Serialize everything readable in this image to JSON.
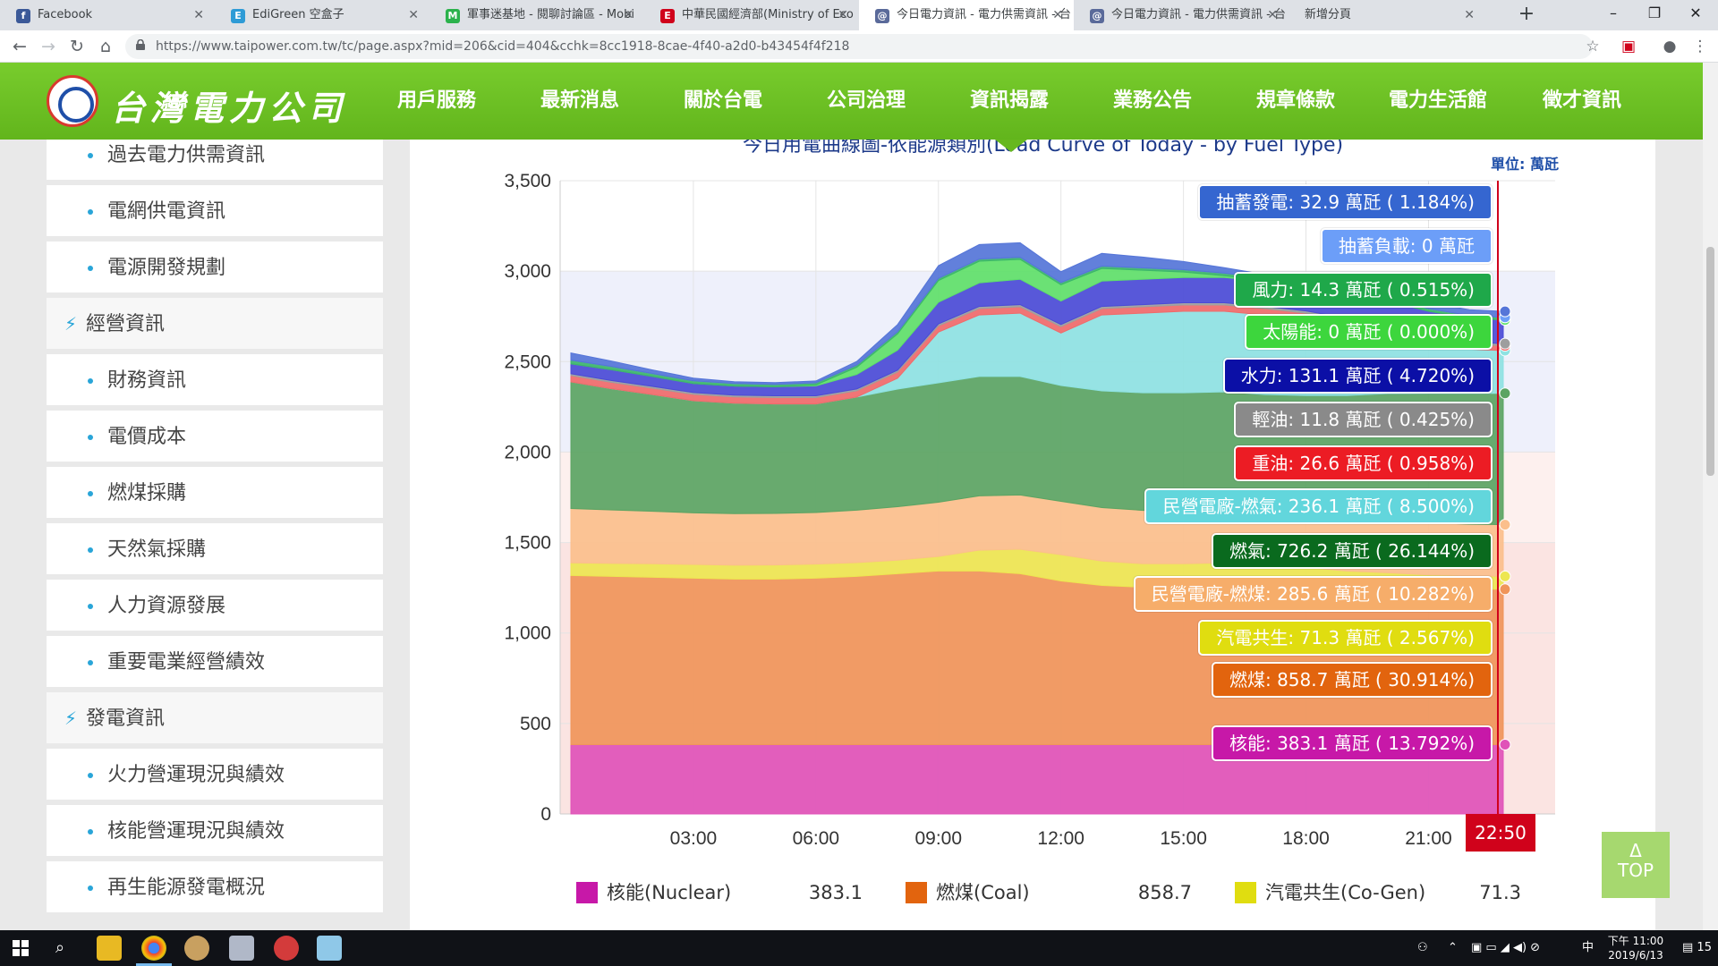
{
  "browser": {
    "tabs": [
      {
        "title": "Facebook",
        "favicon": "f",
        "favcolor": "#3b5998"
      },
      {
        "title": "EdiGreen 空盒子",
        "favicon": "E",
        "favcolor": "#2e9bd6"
      },
      {
        "title": "軍事迷基地 - 閱聊討論區 - Mobi",
        "favicon": "M",
        "favcolor": "#2bb24c"
      },
      {
        "title": "中華民國經濟部(Ministry of Eco",
        "favicon": "E",
        "favcolor": "#d0021b"
      },
      {
        "title": "今日電力資訊 - 電力供需資訊 - 台",
        "favicon": "@",
        "favcolor": "#5a6a9a"
      },
      {
        "title": "今日電力資訊 - 電力供需資訊 - 台",
        "favicon": "@",
        "favcolor": "#5a6a9a"
      },
      {
        "title": "新增分頁",
        "favicon": "",
        "favcolor": "#ffffff"
      }
    ],
    "url": "https://www.taipower.com.tw/tc/page.aspx?mid=206&cid=404&cchk=8cc1918-8cae-4f40-a2d0-b43454f4f218"
  },
  "site": {
    "logo_text": "台灣電力公司",
    "nav": [
      "用戶服務",
      "最新消息",
      "關於台電",
      "公司治理",
      "資訊揭露",
      "業務公告",
      "規章條款",
      "電力生活館",
      "徵才資訊"
    ]
  },
  "sidebar": {
    "items": [
      {
        "label": "過去電力供需資訊",
        "type": "sub"
      },
      {
        "label": "電網供電資訊",
        "type": "sub"
      },
      {
        "label": "電源開發規劃",
        "type": "sub"
      },
      {
        "label": "經營資訊",
        "type": "cat"
      },
      {
        "label": "財務資訊",
        "type": "sub"
      },
      {
        "label": "電價成本",
        "type": "sub"
      },
      {
        "label": "燃煤採購",
        "type": "sub"
      },
      {
        "label": "天然氣採購",
        "type": "sub"
      },
      {
        "label": "人力資源發展",
        "type": "sub"
      },
      {
        "label": "重要電業經營績效",
        "type": "sub"
      },
      {
        "label": "發電資訊",
        "type": "cat"
      },
      {
        "label": "火力營運現況與績效",
        "type": "sub"
      },
      {
        "label": "核能營運現況與績效",
        "type": "sub"
      },
      {
        "label": "再生能源發電概況",
        "type": "sub"
      }
    ]
  },
  "chart_header": {
    "title_partial": "今日用電曲線圖-依能源類別(Load Curve of Today - by Fuel Type)",
    "unit": "單位: 萬瓩"
  },
  "chart_data": {
    "type": "area",
    "stacked": true,
    "ylim": [
      0,
      3500
    ],
    "yticks": [
      0,
      500,
      1000,
      1500,
      2000,
      2500,
      3000,
      3500
    ],
    "ytick_labels": [
      "0",
      "500",
      "1,000",
      "1,500",
      "2,000",
      "2,500",
      "3,000",
      "3,500"
    ],
    "xlim_hours": [
      0,
      24
    ],
    "xtick_labels": [
      "03:00",
      "06:00",
      "09:00",
      "12:00",
      "15:00",
      "18:00",
      "21:00"
    ],
    "current_time": "22:50",
    "hours": [
      0,
      1,
      2,
      3,
      4,
      5,
      6,
      7,
      8,
      9,
      10,
      11,
      12,
      13,
      14,
      15,
      16,
      17,
      18,
      19,
      20,
      21,
      22,
      22.83
    ],
    "series": [
      {
        "name": "核能",
        "color": "#e052b8",
        "values": [
          383,
          383,
          383,
          383,
          383,
          383,
          383,
          383,
          383,
          383,
          383,
          383,
          383,
          383,
          383,
          383,
          383,
          383,
          383,
          383,
          383,
          383,
          383,
          383.1
        ]
      },
      {
        "name": "燃煤",
        "color": "#f0955a",
        "values": [
          935,
          930,
          925,
          920,
          915,
          915,
          920,
          930,
          945,
          960,
          960,
          945,
          905,
          880,
          870,
          875,
          880,
          875,
          870,
          865,
          865,
          860,
          860,
          858.7
        ]
      },
      {
        "name": "汽電共生",
        "color": "#ede651",
        "values": [
          70,
          72,
          75,
          76,
          77,
          78,
          78,
          76,
          75,
          80,
          115,
          135,
          145,
          135,
          130,
          125,
          125,
          120,
          110,
          95,
          85,
          78,
          73,
          71.3
        ]
      },
      {
        "name": "民營電廠-燃煤",
        "color": "#fbbf8c",
        "values": [
          300,
          295,
          290,
          285,
          285,
          285,
          285,
          290,
          295,
          300,
          300,
          300,
          295,
          295,
          295,
          295,
          295,
          290,
          290,
          290,
          290,
          288,
          286,
          285.6
        ]
      },
      {
        "name": "燃氣",
        "color": "#5ba463",
        "values": [
          700,
          670,
          645,
          620,
          610,
          605,
          600,
          625,
          650,
          660,
          660,
          655,
          640,
          645,
          650,
          650,
          650,
          650,
          660,
          680,
          700,
          715,
          722,
          726.2
        ]
      },
      {
        "name": "民營電廠-燃氣",
        "color": "#8ee2e2",
        "values": [
          0,
          0,
          0,
          0,
          0,
          0,
          0,
          0,
          60,
          280,
          340,
          350,
          290,
          420,
          440,
          450,
          445,
          440,
          420,
          380,
          330,
          280,
          245,
          236.1
        ]
      },
      {
        "name": "重油",
        "color": "#f06a6a",
        "values": [
          35,
          35,
          35,
          35,
          35,
          35,
          35,
          35,
          35,
          35,
          35,
          35,
          35,
          35,
          35,
          35,
          35,
          35,
          35,
          35,
          30,
          28,
          27,
          26.6
        ]
      },
      {
        "name": "輕油",
        "color": "#9e9e9e",
        "values": [
          10,
          10,
          10,
          10,
          10,
          10,
          10,
          10,
          10,
          10,
          12,
          12,
          12,
          12,
          12,
          12,
          12,
          12,
          12,
          12,
          12,
          12,
          12,
          11.8
        ]
      },
      {
        "name": "水力",
        "color": "#4b4bd6",
        "values": [
          55,
          60,
          55,
          50,
          50,
          50,
          55,
          80,
          110,
          120,
          130,
          140,
          130,
          140,
          140,
          140,
          140,
          140,
          140,
          140,
          140,
          135,
          132,
          131.1
        ]
      },
      {
        "name": "太陽能",
        "color": "#5fe069",
        "values": [
          0,
          0,
          0,
          0,
          0,
          0,
          5,
          40,
          90,
          120,
          120,
          110,
          90,
          70,
          50,
          30,
          10,
          2,
          0,
          0,
          0,
          0,
          0,
          0
        ]
      },
      {
        "name": "風力",
        "color": "#3cb56b",
        "values": [
          20,
          18,
          16,
          15,
          14,
          13,
          12,
          12,
          12,
          12,
          12,
          12,
          12,
          13,
          13,
          13,
          14,
          14,
          14,
          14,
          14,
          14,
          14,
          14.3
        ]
      },
      {
        "name": "抽蓄負載",
        "color": "#6c9ef8",
        "values": [
          0,
          0,
          0,
          0,
          0,
          0,
          0,
          0,
          0,
          0,
          0,
          0,
          0,
          0,
          0,
          0,
          0,
          0,
          0,
          0,
          0,
          0,
          0,
          0
        ]
      },
      {
        "name": "抽蓄發電",
        "color": "#5575d8",
        "values": [
          40,
          30,
          20,
          15,
          10,
          10,
          10,
          20,
          40,
          70,
          80,
          80,
          60,
          70,
          60,
          45,
          30,
          20,
          20,
          25,
          30,
          33,
          33,
          32.9
        ]
      }
    ],
    "tooltips": [
      {
        "text": "抽蓄發電: 32.9 萬瓩 ( 1.184%)",
        "color": "#3566d0"
      },
      {
        "text": "抽蓄負載: 0 萬瓩",
        "color": "#6c9ef8"
      },
      {
        "text": "風力: 14.3 萬瓩 ( 0.515%)",
        "color": "#1fa84a"
      },
      {
        "text": "太陽能: 0 萬瓩 ( 0.000%)",
        "color": "#3dd63d"
      },
      {
        "text": "水力: 131.1 萬瓩 ( 4.720%)",
        "color": "#0b0fa6"
      },
      {
        "text": "輕油: 11.8 萬瓩 ( 0.425%)",
        "color": "#8a8a8a"
      },
      {
        "text": "重油: 26.6 萬瓩 ( 0.958%)",
        "color": "#ec1c24"
      },
      {
        "text": "民營電廠-燃氣: 236.1 萬瓩 ( 8.500%)",
        "color": "#62d6dc"
      },
      {
        "text": "燃氣: 726.2 萬瓩 ( 26.144%)",
        "color": "#0a6a1e"
      },
      {
        "text": "民營電廠-燃煤: 285.6 萬瓩 ( 10.282%)",
        "color": "#f6ad6a"
      },
      {
        "text": "汽電共生: 71.3 萬瓩 ( 2.567%)",
        "color": "#e0dd10"
      },
      {
        "text": "燃煤: 858.7 萬瓩 ( 30.914%)",
        "color": "#e2640e"
      },
      {
        "text": "核能: 383.1 萬瓩 ( 13.792%)",
        "color": "#c718a8"
      }
    ],
    "legend": [
      {
        "name": "核能(Nuclear)",
        "value": "383.1",
        "color": "#c718a8"
      },
      {
        "name": "燃煤(Coal)",
        "value": "858.7",
        "color": "#e2640e"
      },
      {
        "name": "汽電共生(Co-Gen)",
        "value": "71.3",
        "color": "#e0dd10"
      }
    ]
  },
  "top_button": {
    "arrow": "Δ",
    "label": "TOP"
  },
  "taskbar": {
    "time": "下午 11:00",
    "date": "2019/6/13",
    "notif": "15"
  }
}
